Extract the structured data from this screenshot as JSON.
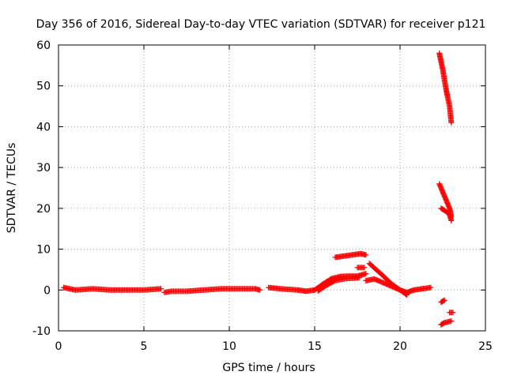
{
  "chart_data": {
    "type": "scatter",
    "title": "Day 356 of 2016, Sidereal Day-to-day VTEC variation (SDTVAR) for receiver p121",
    "xlabel": "GPS time / hours",
    "ylabel": "SDTVAR / TECUs",
    "xlim": [
      0,
      25
    ],
    "ylim": [
      -10,
      60
    ],
    "xticks": [
      "0",
      "5",
      "10",
      "15",
      "20",
      "25"
    ],
    "yticks": [
      "-10",
      "0",
      "10",
      "20",
      "30",
      "40",
      "50",
      "60"
    ],
    "grid": true,
    "marker": "plus",
    "series_color": "#ff0000",
    "segments": [
      {
        "x": [
          0.3,
          1.0,
          2.0,
          3.0,
          4.0,
          5.0,
          6.0
        ],
        "y": [
          0.6,
          0.0,
          0.3,
          0.0,
          0.0,
          0.0,
          0.3
        ]
      },
      {
        "x": [
          6.2,
          6.6,
          7.5,
          8.5,
          9.5,
          10.5,
          11.5,
          11.8
        ],
        "y": [
          -0.6,
          -0.3,
          -0.3,
          0.0,
          0.3,
          0.3,
          0.3,
          0.0
        ]
      },
      {
        "x": [
          12.3,
          13.0,
          14.0,
          14.5,
          15.0
        ],
        "y": [
          0.6,
          0.3,
          0.0,
          -0.3,
          0.0
        ]
      },
      {
        "x": [
          15.0,
          15.5,
          16.0,
          16.5,
          17.0,
          17.5,
          18.0
        ],
        "y": [
          0.0,
          1.5,
          2.8,
          3.3,
          3.4,
          3.4,
          4.0
        ]
      },
      {
        "x": [
          15.2,
          15.7,
          16.2,
          16.8,
          17.2,
          17.6
        ],
        "y": [
          -0.2,
          1.2,
          2.3,
          2.8,
          2.9,
          3.0
        ]
      },
      {
        "x": [
          16.2,
          16.7,
          17.2,
          17.7,
          18.0
        ],
        "y": [
          8.0,
          8.3,
          8.6,
          8.9,
          8.6
        ]
      },
      {
        "x": [
          17.5,
          17.9
        ],
        "y": [
          5.5,
          5.5
        ]
      },
      {
        "x": [
          18.2,
          18.6,
          19.0,
          19.5,
          20.0,
          20.4,
          20.8,
          21.3,
          21.8
        ],
        "y": [
          6.5,
          5.0,
          3.5,
          1.5,
          0.0,
          -0.6,
          0.0,
          0.3,
          0.6
        ]
      },
      {
        "x": [
          18.0,
          18.5,
          19.0,
          19.5,
          20.0,
          20.4
        ],
        "y": [
          2.3,
          2.7,
          1.8,
          0.9,
          0.0,
          -1.2
        ]
      },
      {
        "x": [
          22.3,
          22.5,
          22.7,
          22.9,
          23.0
        ],
        "y": [
          58.0,
          54.0,
          49.0,
          45.0,
          41.0
        ]
      },
      {
        "x": [
          22.3,
          22.5,
          22.7,
          22.9,
          23.0
        ],
        "y": [
          26.0,
          24.0,
          22.0,
          20.0,
          18.0
        ]
      },
      {
        "x": [
          22.4,
          22.6,
          22.9,
          23.0
        ],
        "y": [
          20.0,
          19.5,
          18.5,
          17.0
        ]
      },
      {
        "x": [
          22.4,
          22.6,
          22.8,
          23.0
        ],
        "y": [
          -8.5,
          -8.0,
          -7.8,
          -7.6
        ]
      },
      {
        "x": [
          22.4,
          22.6
        ],
        "y": [
          -3.0,
          -2.5
        ]
      },
      {
        "x": [
          22.9,
          23.1
        ],
        "y": [
          -5.5,
          -5.5
        ]
      }
    ]
  }
}
